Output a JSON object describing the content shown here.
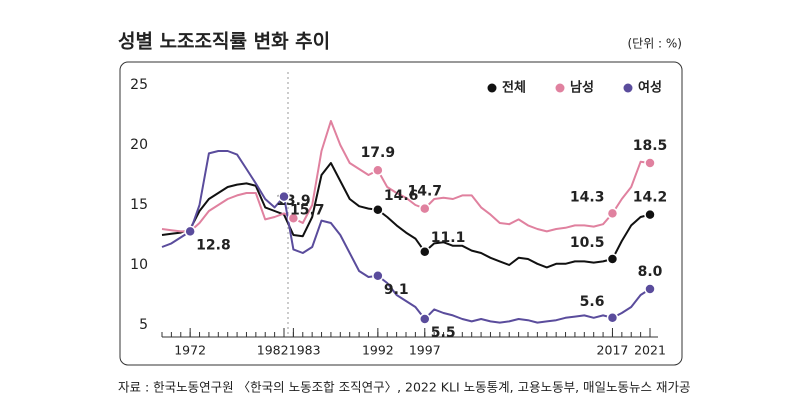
{
  "chart_data": {
    "type": "line",
    "title": "성별 노조조직률 변화 추이",
    "subtitle": "(단위 : %)",
    "source": "자료 : 한국노동연구원 〈한국의 노동조합 조직연구〉, 2022 KLI 노동통계, 고용노동부, 매일노동뉴스 재가공",
    "x": [
      1969,
      1970,
      1971,
      1972,
      1973,
      1974,
      1975,
      1976,
      1977,
      1978,
      1979,
      1980,
      1981,
      1982,
      1983,
      1984,
      1985,
      1986,
      1987,
      1988,
      1989,
      1990,
      1991,
      1992,
      1993,
      1994,
      1995,
      1996,
      1997,
      1998,
      1999,
      2000,
      2001,
      2002,
      2003,
      2004,
      2005,
      2006,
      2007,
      2008,
      2009,
      2010,
      2011,
      2012,
      2013,
      2014,
      2015,
      2016,
      2017,
      2018,
      2019,
      2020,
      2021
    ],
    "xlim": [
      1969,
      2021
    ],
    "xticks": [
      1972,
      1982,
      1983,
      1992,
      1997,
      2017,
      2021
    ],
    "ylim": [
      4,
      25
    ],
    "yticks": [
      5,
      10,
      15,
      20,
      25
    ],
    "grid": false,
    "legend": "top-right",
    "series": [
      {
        "name": "전체",
        "color": "#111111",
        "values": [
          12.5,
          12.6,
          12.7,
          13.0,
          14.5,
          15.5,
          16.0,
          16.5,
          16.7,
          16.8,
          16.6,
          14.8,
          14.5,
          14.2,
          12.5,
          12.4,
          14.0,
          17.5,
          18.5,
          17.0,
          15.5,
          14.9,
          14.7,
          14.6,
          14.0,
          13.3,
          12.7,
          12.2,
          11.1,
          11.8,
          11.9,
          11.6,
          11.6,
          11.2,
          11.0,
          10.6,
          10.3,
          10.0,
          10.6,
          10.5,
          10.1,
          9.8,
          10.1,
          10.1,
          10.3,
          10.3,
          10.2,
          10.3,
          10.5,
          12.0,
          13.3,
          14.0,
          14.2
        ],
        "value_labels": [
          null,
          null,
          null,
          null,
          null,
          null,
          null,
          null,
          null,
          null,
          null,
          null,
          null,
          null,
          null,
          null,
          null,
          null,
          null,
          null,
          null,
          null,
          null,
          "14.6",
          null,
          null,
          null,
          null,
          "11.1",
          null,
          null,
          null,
          null,
          null,
          null,
          null,
          null,
          null,
          null,
          null,
          null,
          null,
          null,
          null,
          null,
          null,
          null,
          null,
          "10.5",
          null,
          null,
          null,
          "14.2"
        ]
      },
      {
        "name": "남성",
        "color": "#e0819f",
        "values": [
          13.0,
          12.9,
          12.8,
          12.8,
          13.5,
          14.5,
          15.0,
          15.5,
          15.8,
          16.0,
          16.0,
          13.8,
          14.0,
          14.3,
          13.9,
          13.5,
          15.0,
          19.5,
          22.0,
          20.0,
          18.5,
          18.0,
          17.5,
          17.9,
          16.5,
          16.0,
          15.6,
          15.0,
          14.7,
          15.5,
          15.6,
          15.5,
          15.8,
          15.8,
          14.8,
          14.2,
          13.5,
          13.4,
          13.8,
          13.3,
          13.0,
          12.8,
          13.0,
          13.1,
          13.3,
          13.3,
          13.2,
          13.4,
          14.3,
          15.5,
          16.5,
          18.6,
          18.5
        ],
        "value_labels": [
          null,
          null,
          null,
          null,
          null,
          null,
          null,
          null,
          null,
          null,
          null,
          null,
          null,
          null,
          "13.9",
          null,
          null,
          null,
          null,
          null,
          null,
          null,
          null,
          "17.9",
          null,
          null,
          null,
          null,
          "14.7",
          null,
          null,
          null,
          null,
          null,
          null,
          null,
          null,
          null,
          null,
          null,
          null,
          null,
          null,
          null,
          null,
          null,
          null,
          null,
          "14.3",
          null,
          null,
          null,
          "18.5"
        ]
      },
      {
        "name": "여성",
        "color": "#5a4c9c",
        "values": [
          11.5,
          11.8,
          12.3,
          12.8,
          15.0,
          19.3,
          19.5,
          19.5,
          19.2,
          18.0,
          16.8,
          15.5,
          14.8,
          15.7,
          11.3,
          11.0,
          11.5,
          13.7,
          13.5,
          12.5,
          11.0,
          9.5,
          9.0,
          9.1,
          8.5,
          7.5,
          7.0,
          6.5,
          5.5,
          6.3,
          6.0,
          5.8,
          5.5,
          5.3,
          5.5,
          5.3,
          5.2,
          5.3,
          5.5,
          5.4,
          5.2,
          5.3,
          5.4,
          5.6,
          5.7,
          5.8,
          5.6,
          5.8,
          5.6,
          6.0,
          6.5,
          7.5,
          8.0
        ],
        "value_labels": [
          null,
          null,
          null,
          "12.8",
          null,
          null,
          null,
          null,
          null,
          null,
          null,
          null,
          null,
          "15.7",
          null,
          null,
          null,
          null,
          null,
          null,
          null,
          null,
          null,
          "9.1",
          null,
          null,
          null,
          null,
          "5.5",
          null,
          null,
          null,
          null,
          null,
          null,
          null,
          null,
          null,
          null,
          null,
          null,
          null,
          null,
          null,
          null,
          null,
          null,
          null,
          "5.6",
          null,
          null,
          null,
          "8.0"
        ]
      }
    ]
  }
}
